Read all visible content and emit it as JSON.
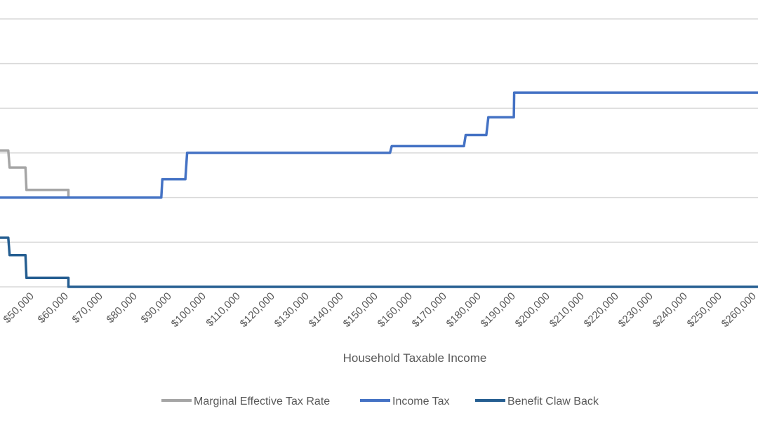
{
  "chart_data": {
    "type": "line",
    "title": "",
    "xlabel": "Household Taxable Income",
    "ylabel": "",
    "x_tick_labels": [
      "$50,000",
      "$60,000",
      "$70,000",
      "$80,000",
      "$90,000",
      "$100,000",
      "$110,000",
      "$120,000",
      "$130,000",
      "$140,000",
      "$150,000",
      "$160,000",
      "$170,000",
      "$180,000",
      "$190,000",
      "$200,000",
      "$210,000",
      "$220,000",
      "$230,000",
      "$240,000",
      "$250,000",
      "$260,000"
    ],
    "x_tick_values": [
      50000,
      60000,
      70000,
      80000,
      90000,
      100000,
      110000,
      120000,
      130000,
      140000,
      150000,
      160000,
      170000,
      180000,
      190000,
      200000,
      210000,
      220000,
      230000,
      240000,
      250000,
      260000
    ],
    "xlim": [
      40600,
      261000
    ],
    "ylim": [
      0,
      60
    ],
    "y_gridlines": [
      0,
      10,
      20,
      30,
      40,
      50,
      60
    ],
    "grid": true,
    "legend_position": "bottom",
    "series": [
      {
        "name": "Marginal Effective Tax Rate",
        "color": "#A5A5A5",
        "points": [
          [
            40600,
            30.5
          ],
          [
            43000,
            30.5
          ],
          [
            43400,
            26.7
          ],
          [
            48000,
            26.7
          ],
          [
            48300,
            21.7
          ],
          [
            60500,
            21.7
          ],
          [
            60500,
            20
          ]
        ]
      },
      {
        "name": "Income Tax",
        "color": "#4472C4",
        "points": [
          [
            40600,
            20
          ],
          [
            87500,
            20
          ],
          [
            87800,
            24.1
          ],
          [
            94500,
            24.1
          ],
          [
            95000,
            30
          ],
          [
            154000,
            30
          ],
          [
            154500,
            31.5
          ],
          [
            175500,
            31.5
          ],
          [
            176000,
            34
          ],
          [
            182000,
            34
          ],
          [
            182600,
            38
          ],
          [
            190000,
            38
          ],
          [
            190100,
            43.5
          ],
          [
            261000,
            43.5
          ]
        ]
      },
      {
        "name": "Benefit Claw Back",
        "color": "#255E91",
        "points": [
          [
            40600,
            11
          ],
          [
            43000,
            11
          ],
          [
            43400,
            7.1
          ],
          [
            48000,
            7.1
          ],
          [
            48300,
            2
          ],
          [
            60500,
            2
          ],
          [
            60500,
            0
          ],
          [
            261000,
            0
          ]
        ]
      }
    ]
  }
}
